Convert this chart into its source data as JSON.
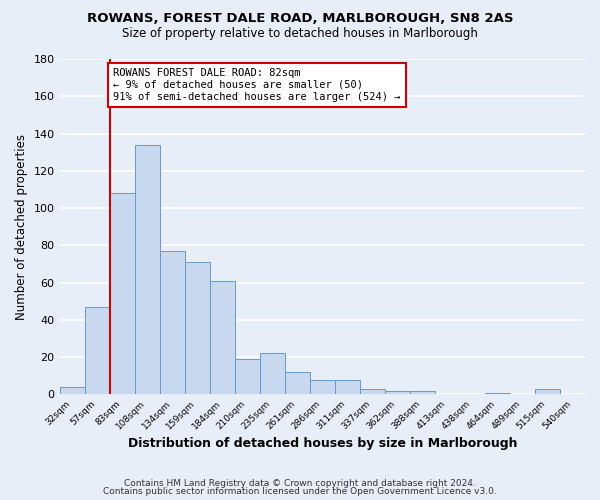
{
  "title": "ROWANS, FOREST DALE ROAD, MARLBOROUGH, SN8 2AS",
  "subtitle": "Size of property relative to detached houses in Marlborough",
  "xlabel": "Distribution of detached houses by size in Marlborough",
  "ylabel": "Number of detached properties",
  "categories": [
    "32sqm",
    "57sqm",
    "83sqm",
    "108sqm",
    "134sqm",
    "159sqm",
    "184sqm",
    "210sqm",
    "235sqm",
    "261sqm",
    "286sqm",
    "311sqm",
    "337sqm",
    "362sqm",
    "388sqm",
    "413sqm",
    "438sqm",
    "464sqm",
    "489sqm",
    "515sqm",
    "540sqm"
  ],
  "values": [
    4,
    47,
    108,
    134,
    77,
    71,
    61,
    19,
    22,
    12,
    8,
    8,
    3,
    2,
    2,
    0,
    0,
    1,
    0,
    3,
    0
  ],
  "bar_color": "#c8d8ee",
  "bar_edge_color": "#6699cc",
  "bg_color": "#e8eef8",
  "plot_bg_color": "#e8eef8",
  "grid_color": "#ffffff",
  "property_line_x": 2,
  "annotation_text": "ROWANS FOREST DALE ROAD: 82sqm\n← 9% of detached houses are smaller (50)\n91% of semi-detached houses are larger (524) →",
  "annotation_box_color": "#ffffff",
  "annotation_border_color": "#cc0000",
  "property_line_color": "#cc0000",
  "ylim": [
    0,
    180
  ],
  "yticks": [
    0,
    20,
    40,
    60,
    80,
    100,
    120,
    140,
    160,
    180
  ],
  "footer1": "Contains HM Land Registry data © Crown copyright and database right 2024.",
  "footer2": "Contains public sector information licensed under the Open Government Licence v3.0."
}
